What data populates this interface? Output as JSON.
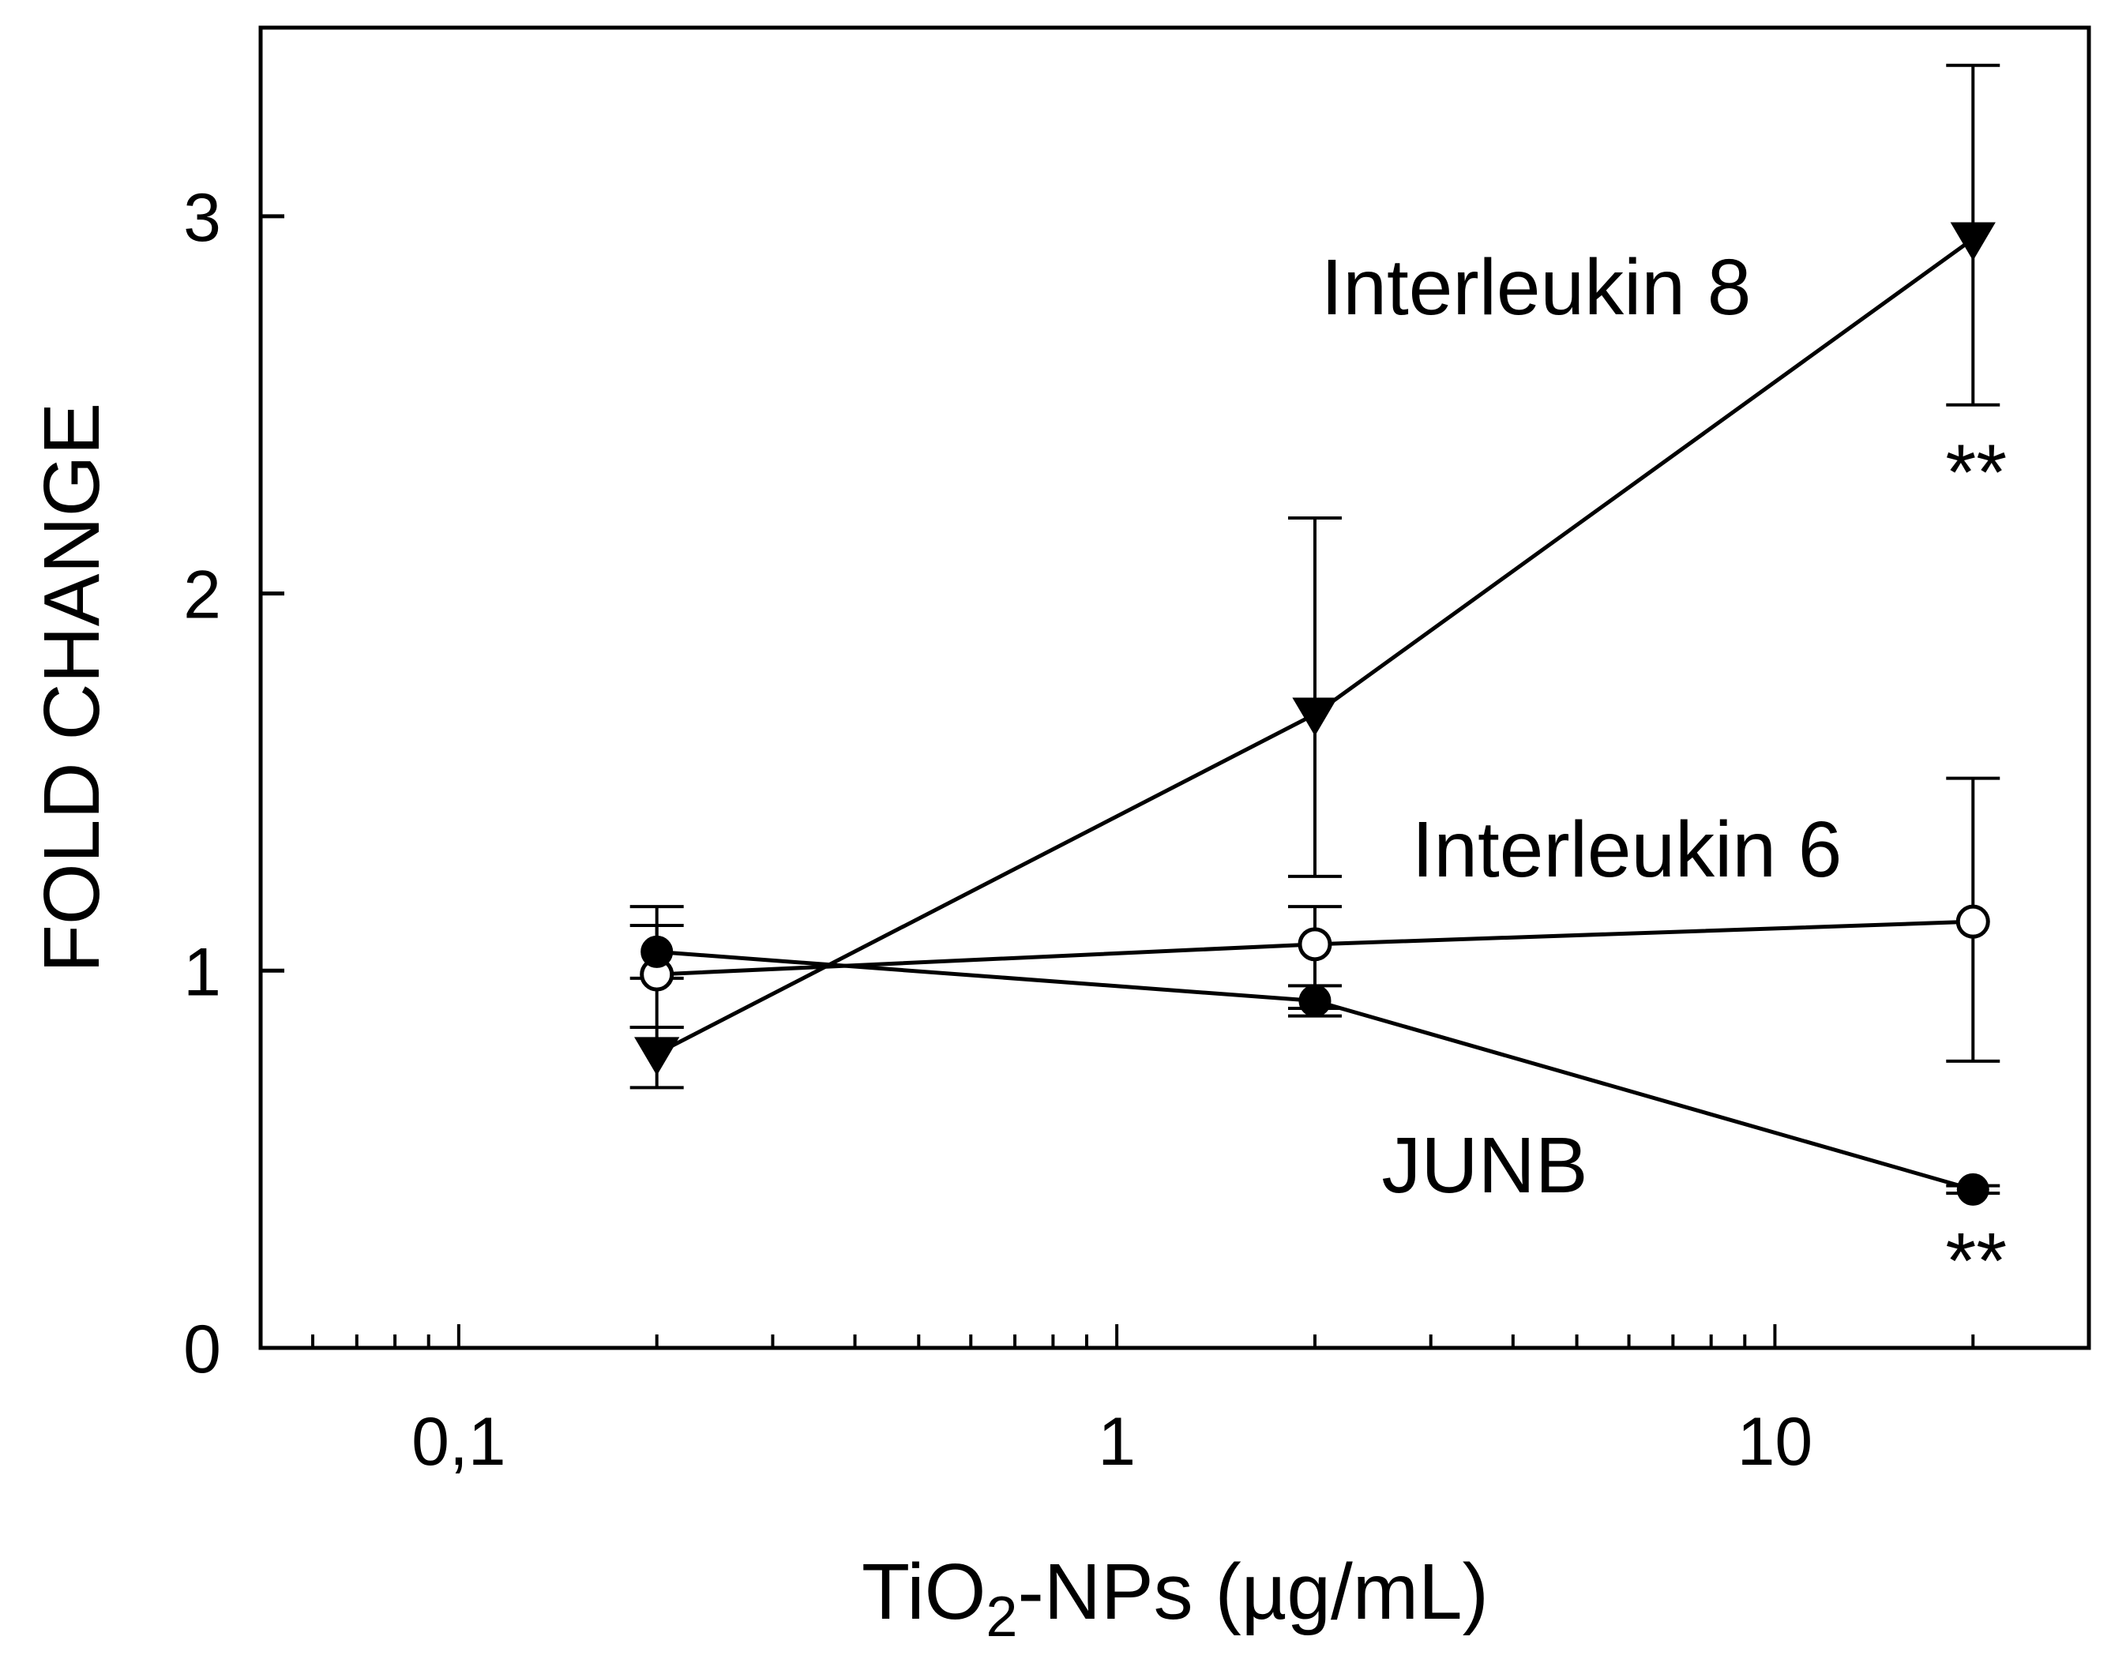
{
  "chart_data": {
    "type": "line",
    "xlabel": {
      "main": "TiO",
      "sub": "2",
      "rest": "-NPs (µg/mL)"
    },
    "ylabel": "FOLD CHANGE",
    "x_scale": "log",
    "xlim": [
      0.05,
      30
    ],
    "ylim": [
      0,
      3.5
    ],
    "x_ticks": [
      {
        "value": 0.1,
        "label": "0,1"
      },
      {
        "value": 1,
        "label": "1"
      },
      {
        "value": 10,
        "label": "10"
      }
    ],
    "y_ticks": [
      {
        "value": 0,
        "label": "0"
      },
      {
        "value": 1,
        "label": "1"
      },
      {
        "value": 2,
        "label": "2"
      },
      {
        "value": 3,
        "label": "3"
      }
    ],
    "grid": false,
    "legend": "none",
    "x": [
      0.2,
      2,
      20
    ],
    "series": [
      {
        "name": "Interleukin 8",
        "marker": "triangle-down-filled",
        "values": [
          0.78,
          1.68,
          2.94
        ],
        "err_upper": [
          0.85,
          2.2,
          3.4
        ],
        "err_lower": [
          0.69,
          1.25,
          2.5
        ],
        "annotations": [
          {
            "x": 20,
            "text": "**"
          }
        ]
      },
      {
        "name": "Interleukin 6",
        "marker": "circle-open",
        "values": [
          0.99,
          1.07,
          1.13
        ],
        "err_upper": [
          1.17,
          1.17,
          1.51
        ],
        "err_lower": [
          0.85,
          0.9,
          0.76
        ],
        "annotations": []
      },
      {
        "name": "JUNB",
        "marker": "circle-filled",
        "values": [
          1.05,
          0.92,
          0.42
        ],
        "err_upper": [
          1.12,
          0.96,
          0.43
        ],
        "err_lower": [
          0.98,
          0.88,
          0.41
        ],
        "annotations": [
          {
            "x": 20,
            "text": "**"
          }
        ]
      }
    ]
  }
}
